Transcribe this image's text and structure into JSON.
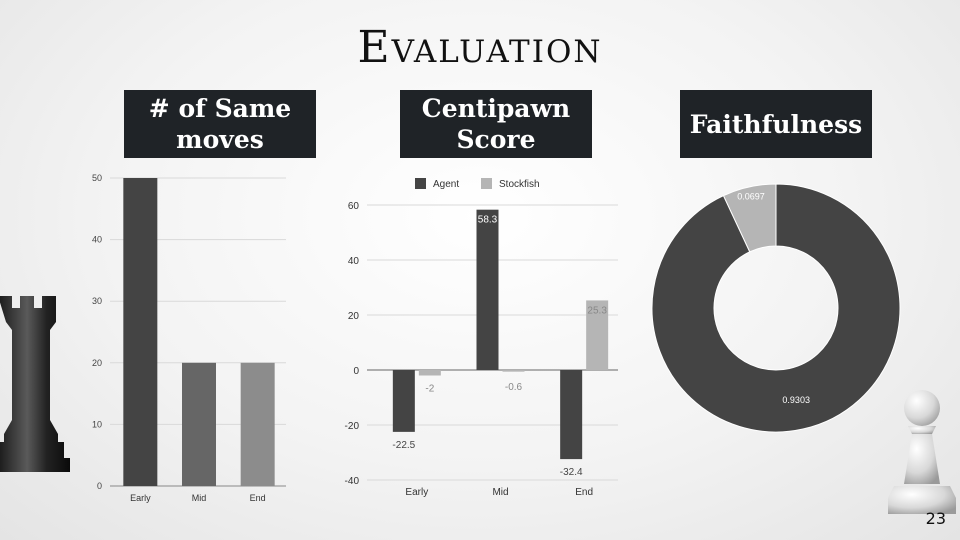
{
  "slide": {
    "title": "Evaluation",
    "page_number": "23"
  },
  "labels": {
    "same_moves": "# of Same moves",
    "centipawn": "Centipawn Score",
    "faithfulness": "Faithfulness"
  },
  "colors": {
    "dark_bar": "#444444",
    "mid_bar": "#666666",
    "light_bar": "#8c8c8c",
    "stockfish": "#b5b5b5",
    "label_bg": "#1f2327"
  },
  "decorations": [
    "chess-rook-icon",
    "chess-pawn-icon"
  ],
  "chart_data": [
    {
      "type": "bar",
      "categories": [
        "Early",
        "Mid",
        "End"
      ],
      "values": [
        50,
        20,
        20
      ],
      "ylim": [
        0,
        50
      ],
      "yticks": [
        0,
        10,
        20,
        30,
        40,
        50
      ],
      "grid": true
    },
    {
      "type": "bar",
      "categories": [
        "Early",
        "Mid",
        "End"
      ],
      "series": [
        {
          "name": "Agent",
          "values": [
            -22.5,
            58.3,
            -32.4
          ],
          "labels": [
            "-22.5",
            "58.3",
            "-32.4"
          ]
        },
        {
          "name": "Stockfish",
          "values": [
            -2,
            -0.6,
            25.3
          ],
          "labels": [
            "-2",
            "-0.6",
            "25.3"
          ]
        }
      ],
      "ylim": [
        -40,
        60
      ],
      "yticks": [
        -40,
        -20,
        0,
        20,
        40,
        60
      ],
      "legend": "top",
      "grid": true
    },
    {
      "type": "pie",
      "donut": true,
      "values": [
        0.0697,
        0.9303
      ],
      "labels": [
        "0.0697",
        "0.9303"
      ]
    }
  ]
}
